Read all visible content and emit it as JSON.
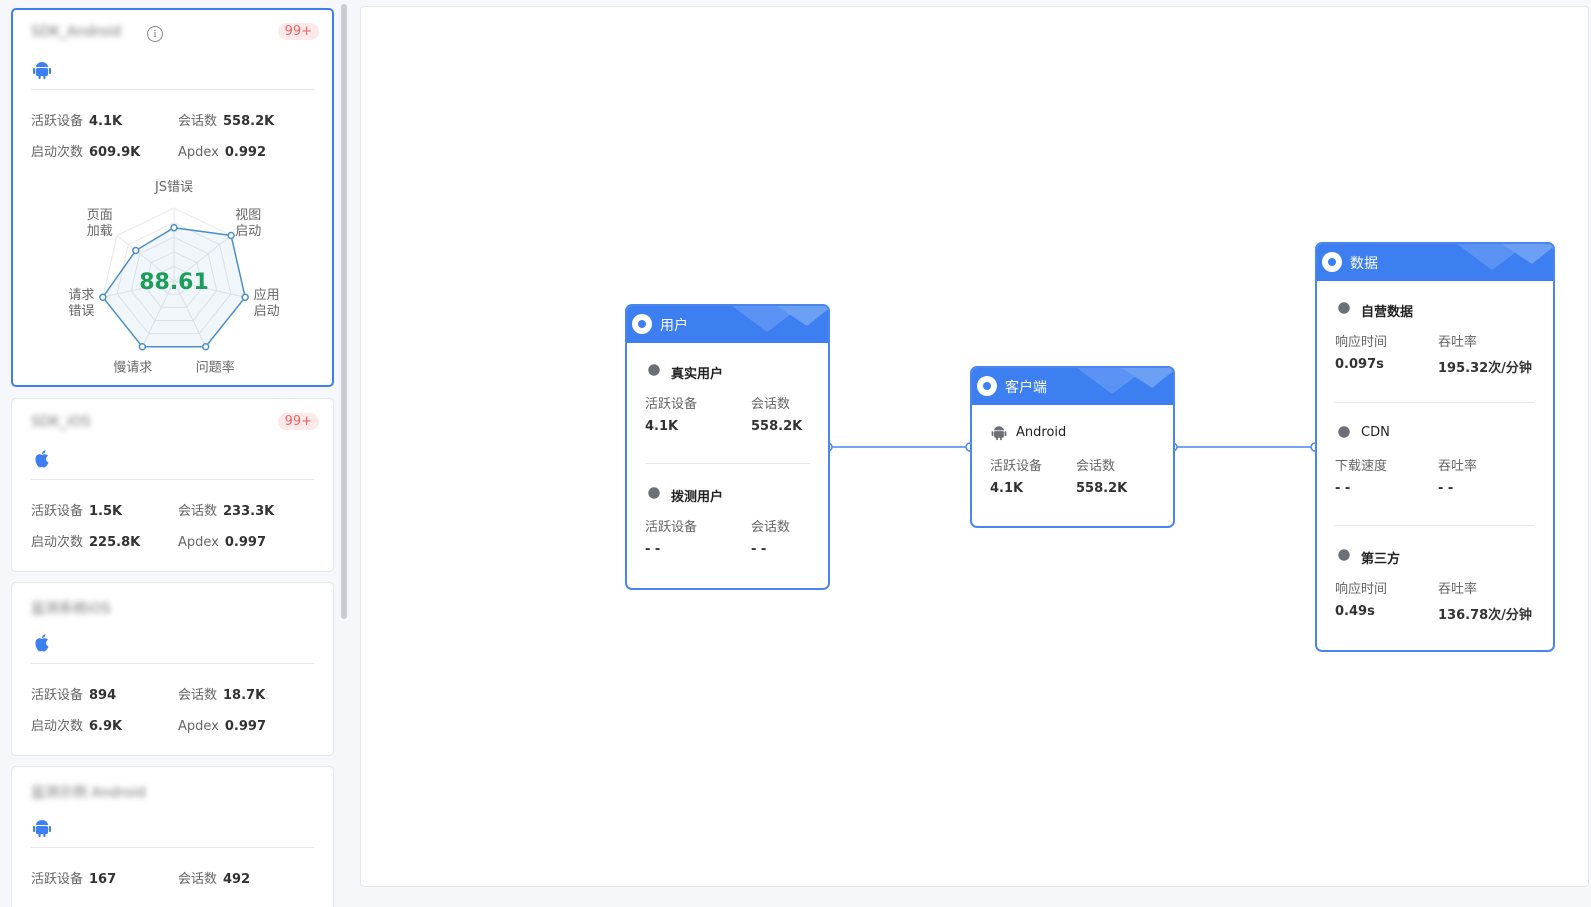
{
  "sidebar": {
    "cards": [
      {
        "name": "SDK_Android",
        "platform": "android",
        "badge": "99+",
        "stats": [
          {
            "label": "活跃设备",
            "value": "4.1K"
          },
          {
            "label": "会话数",
            "value": "558.2K"
          },
          {
            "label": "启动次数",
            "value": "609.9K"
          },
          {
            "label": "Apdex",
            "value": "0.992"
          }
        ],
        "radar": {
          "score": 88.61,
          "rlim": [
            0,
            100
          ],
          "axes": [
            {
              "label": [
                "JS错误"
              ],
              "value": 73
            },
            {
              "label": [
                "视图",
                "启动"
              ],
              "value": 100
            },
            {
              "label": [
                "应用",
                "启动"
              ],
              "value": 100
            },
            {
              "label": [
                "问题率"
              ],
              "value": 100
            },
            {
              "label": [
                "慢请求"
              ],
              "value": 100
            },
            {
              "label": [
                "请求",
                "错误"
              ],
              "value": 100
            },
            {
              "label": [
                "页面",
                "加载"
              ],
              "value": 67
            }
          ]
        }
      },
      {
        "name": "SDK_iOS",
        "platform": "ios",
        "badge": "99+",
        "stats": [
          {
            "label": "活跃设备",
            "value": "1.5K"
          },
          {
            "label": "会话数",
            "value": "233.3K"
          },
          {
            "label": "启动次数",
            "value": "225.8K"
          },
          {
            "label": "Apdex",
            "value": "0.997"
          }
        ]
      },
      {
        "name": "监测系统iOS",
        "platform": "ios",
        "stats": [
          {
            "label": "活跃设备",
            "value": "894"
          },
          {
            "label": "会话数",
            "value": "18.7K"
          },
          {
            "label": "启动次数",
            "value": "6.9K"
          },
          {
            "label": "Apdex",
            "value": "0.997"
          }
        ]
      },
      {
        "name": "监测示例 Android",
        "platform": "android",
        "stats": [
          {
            "label": "活跃设备",
            "value": "167"
          },
          {
            "label": "会话数",
            "value": "492"
          }
        ]
      }
    ]
  },
  "diagram": {
    "nodes": [
      {
        "title": "用户",
        "sections": [
          {
            "title": "真实用户",
            "metrics": [
              {
                "label": "活跃设备",
                "value": "4.1K"
              },
              {
                "label": "会话数",
                "value": "558.2K"
              }
            ]
          },
          {
            "title": "拨测用户",
            "metrics": [
              {
                "label": "活跃设备",
                "value": "- -"
              },
              {
                "label": "会话数",
                "value": "- -"
              }
            ]
          }
        ]
      },
      {
        "title": "客户端",
        "sections": [
          {
            "title": "Android",
            "metrics": [
              {
                "label": "活跃设备",
                "value": "4.1K"
              },
              {
                "label": "会话数",
                "value": "558.2K"
              }
            ]
          }
        ]
      },
      {
        "title": "数据",
        "sections": [
          {
            "title": "自营数据",
            "metrics": [
              {
                "label": "响应时间",
                "value": "0.097s"
              },
              {
                "label": "吞吐率",
                "value": "195.32次/分钟"
              }
            ]
          },
          {
            "title": "CDN",
            "metrics": [
              {
                "label": "下载速度",
                "value": "- -"
              },
              {
                "label": "吞吐率",
                "value": "- -"
              }
            ]
          },
          {
            "title": "第三方",
            "metrics": [
              {
                "label": "响应时间",
                "value": "0.49s"
              },
              {
                "label": "吞吐率",
                "value": "136.78次/分钟"
              }
            ]
          }
        ]
      }
    ]
  }
}
